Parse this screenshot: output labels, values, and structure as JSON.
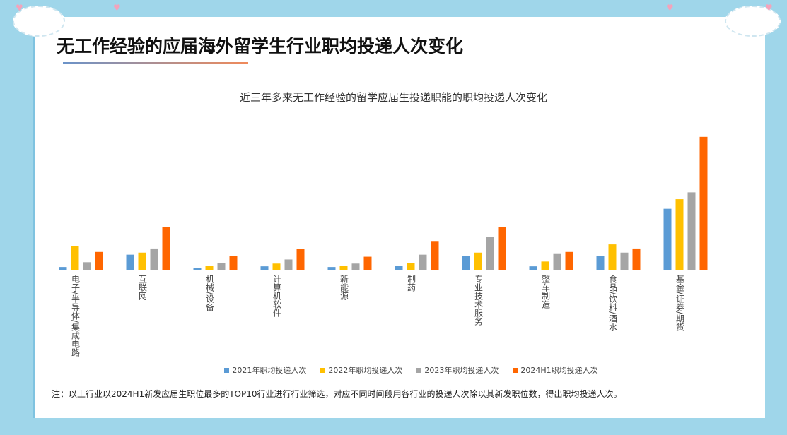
{
  "title": "无工作经验的应届海外留学生行业职均投递人次变化",
  "note": "注：以上行业以2024H1新发应届生职位最多的TOP10行业进行行业筛选，对应不同时间段用各行业的投递人次除以其新发职位数，得出职均投递人次。",
  "chart_data": {
    "type": "bar",
    "title": "近三年多来无工作经验的留学应届生投递职能的职均投递人次变化",
    "categories": [
      "电子/半导体/集成电路",
      "互联网",
      "机械/设备",
      "计算机软件",
      "新能源",
      "制药",
      "专业技术服务",
      "整车制造",
      "食品/饮料/酒水",
      "基金/证券/期货"
    ],
    "series": [
      {
        "name": "2021年职均投递人次",
        "color": "#5b9bd5",
        "values": [
          4,
          22,
          3,
          5,
          4,
          6,
          20,
          5,
          20,
          89
        ]
      },
      {
        "name": "2022年职均投递人次",
        "color": "#ffc000",
        "values": [
          35,
          25,
          6,
          9,
          6,
          10,
          25,
          12,
          37,
          103
        ]
      },
      {
        "name": "2023年职均投递人次",
        "color": "#a5a5a5",
        "values": [
          11,
          31,
          10,
          15,
          9,
          22,
          48,
          24,
          25,
          113
        ]
      },
      {
        "name": "2024H1职均投递人次",
        "color": "#ff6600",
        "values": [
          26,
          62,
          20,
          30,
          19,
          42,
          62,
          26,
          31,
          194
        ]
      }
    ],
    "ylim": [
      0,
      200
    ],
    "y_axis_shown": false,
    "grid": false,
    "legend": "bottom"
  }
}
